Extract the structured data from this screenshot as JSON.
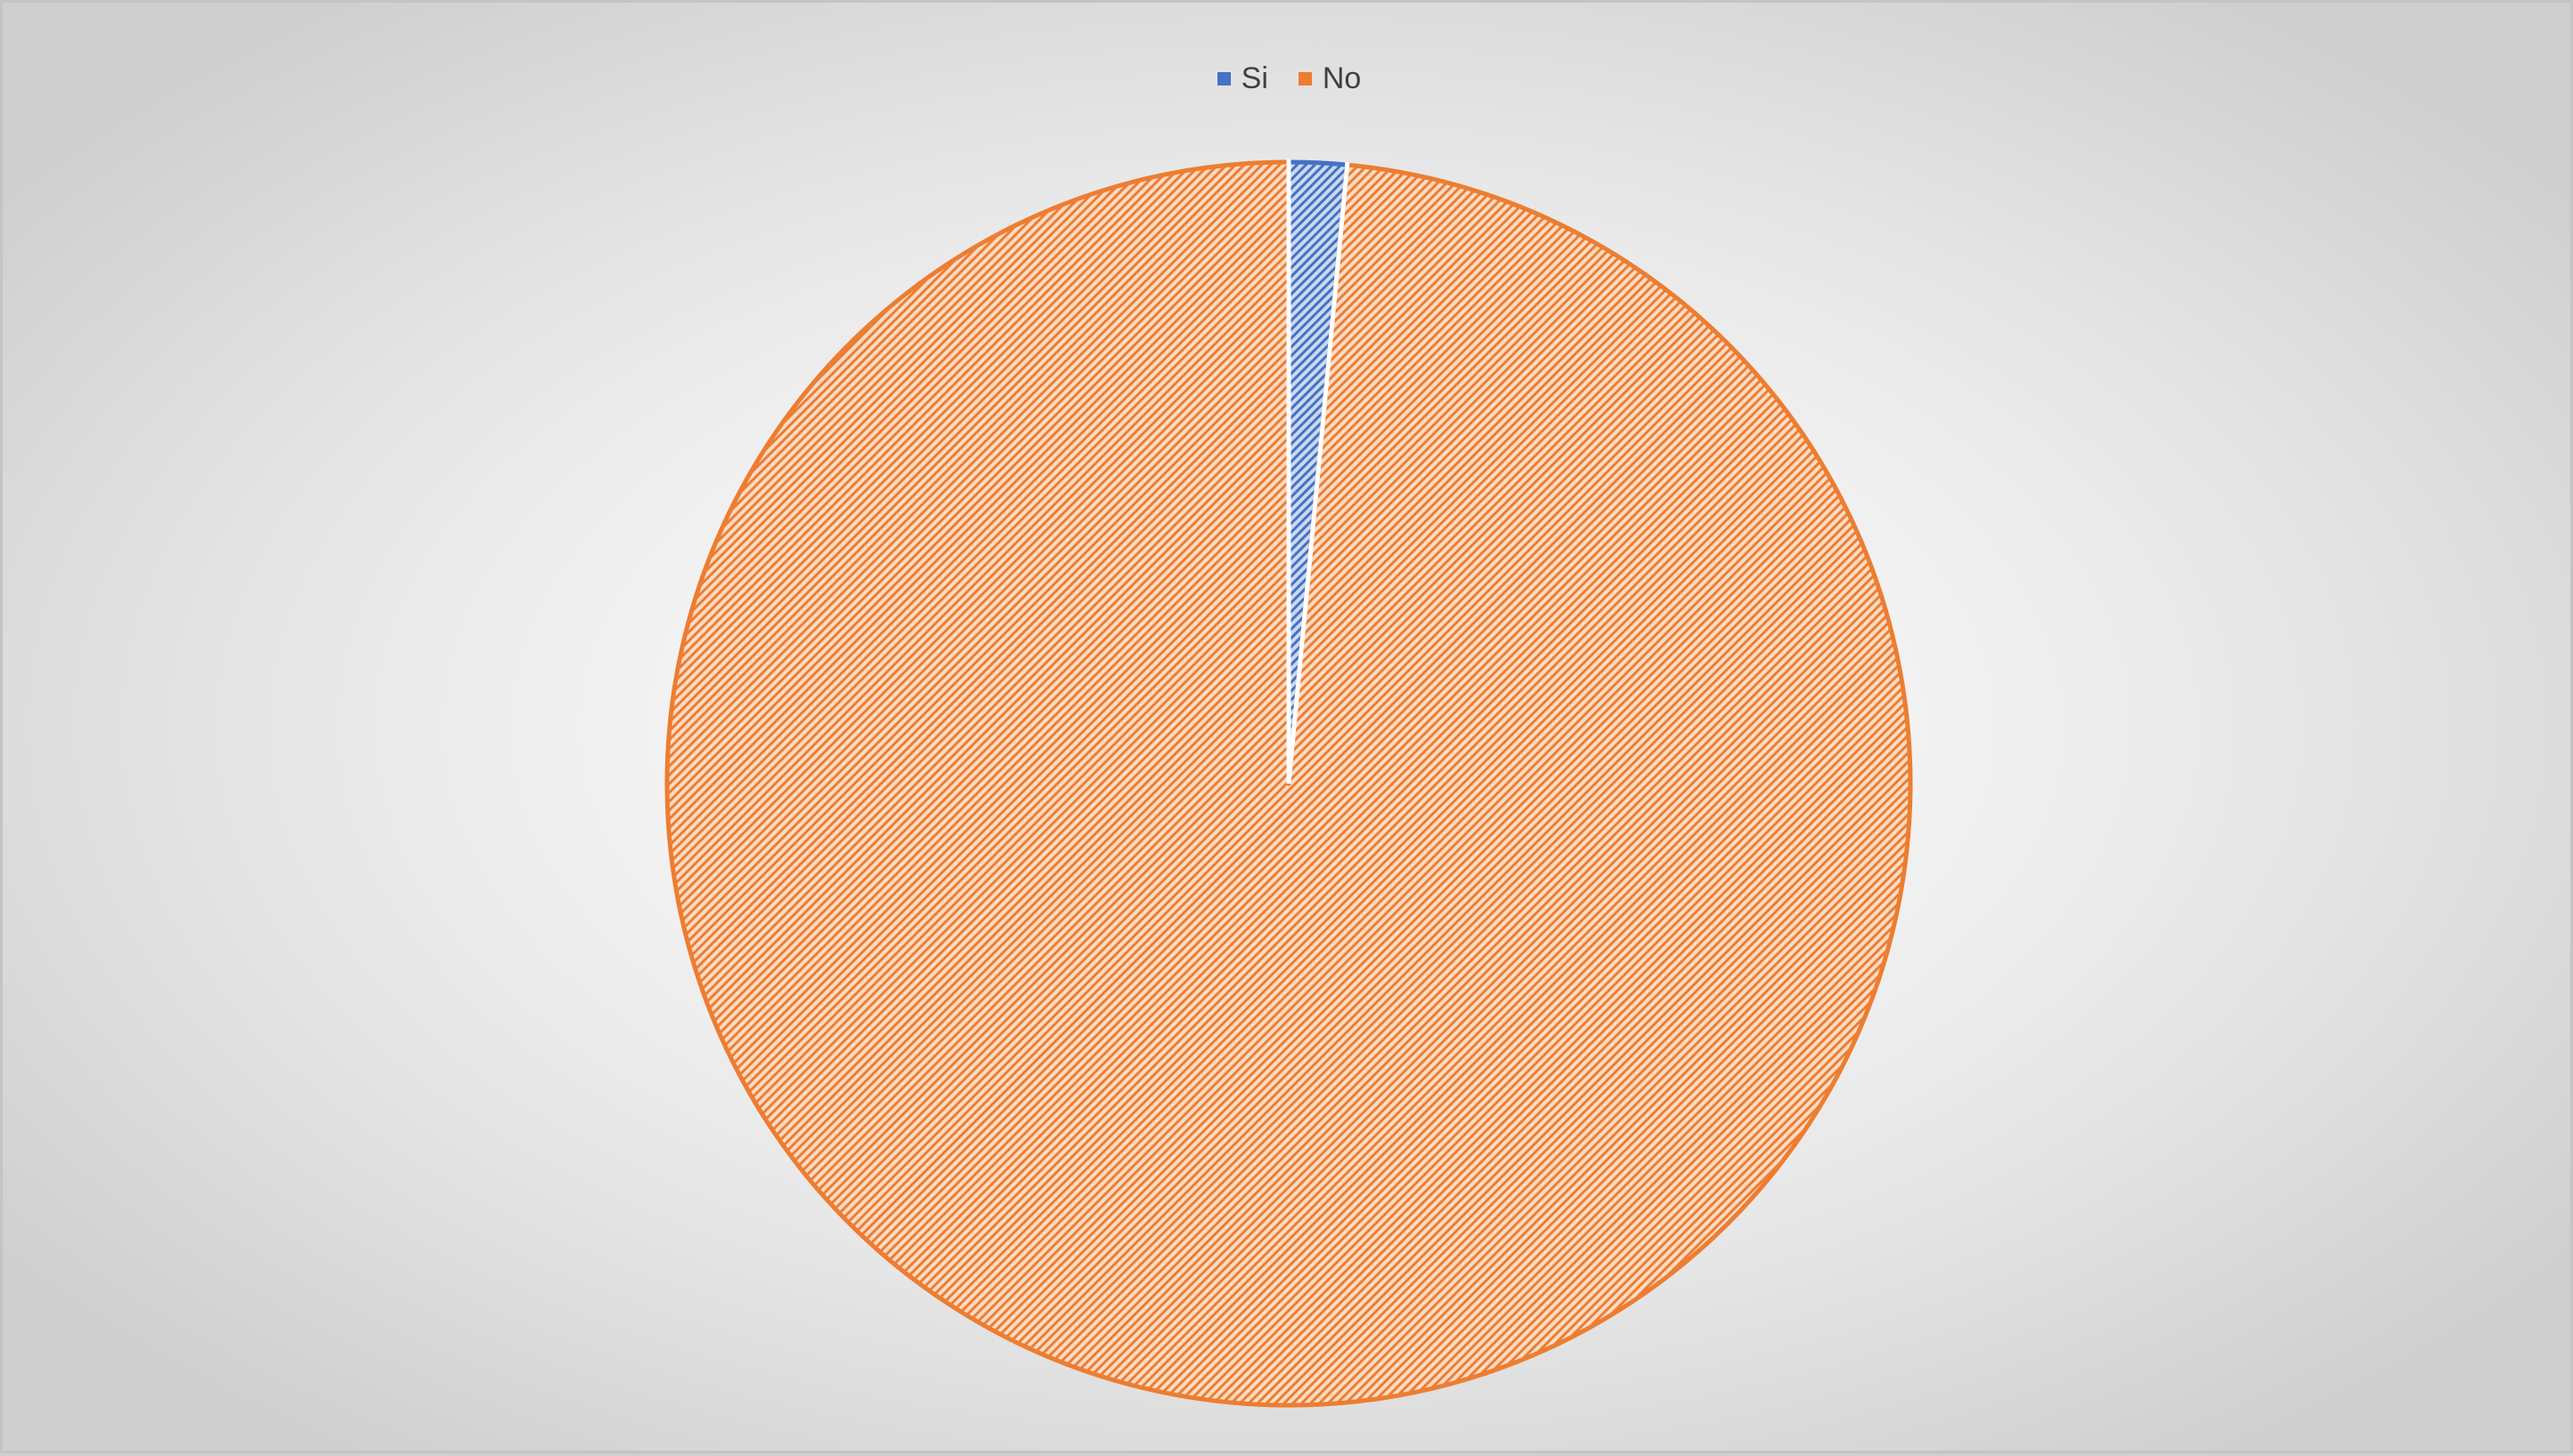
{
  "chart_data": {
    "type": "pie",
    "categories": [
      "Si",
      "No"
    ],
    "values": [
      1.5,
      98.5
    ],
    "colors": [
      "#4472c4",
      "#ed7d31"
    ],
    "fill_pattern": "diagonal-hatch",
    "start_angle": "top, clockwise",
    "title": "",
    "legend": {
      "placement": "top-center",
      "entries": [
        {
          "label": "Si",
          "color": "#4472c4"
        },
        {
          "label": "No",
          "color": "#ed7d31"
        }
      ]
    }
  }
}
